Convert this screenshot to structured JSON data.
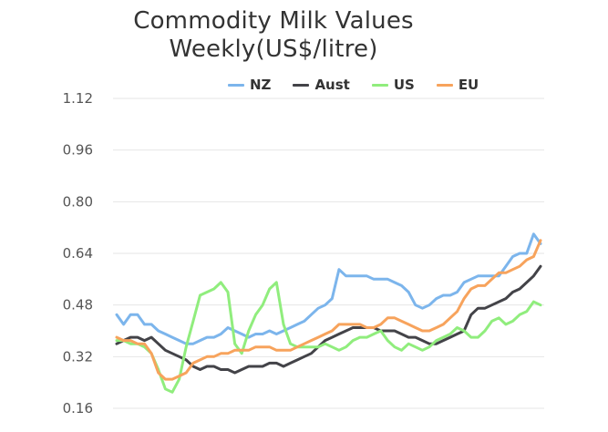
{
  "chart_data": {
    "type": "line",
    "title_line1": "Commodity Milk Values",
    "title_line2": "Weekly(US$/litre)",
    "ylim": [
      0.16,
      1.12
    ],
    "yticks": [
      "1.12",
      "0.96",
      "0.80",
      "0.64",
      "0.48",
      "0.32",
      "0.16"
    ],
    "ytick_values": [
      1.12,
      0.96,
      0.8,
      0.64,
      0.48,
      0.32,
      0.16
    ],
    "grid": true,
    "legend_position": "top-right",
    "series": [
      {
        "name": "NZ",
        "color": "#7cb5ec",
        "values": [
          0.45,
          0.42,
          0.45,
          0.45,
          0.42,
          0.42,
          0.4,
          0.39,
          0.38,
          0.37,
          0.36,
          0.36,
          0.37,
          0.38,
          0.38,
          0.39,
          0.41,
          0.4,
          0.39,
          0.38,
          0.39,
          0.39,
          0.4,
          0.39,
          0.4,
          0.41,
          0.42,
          0.43,
          0.45,
          0.47,
          0.48,
          0.5,
          0.59,
          0.57,
          0.57,
          0.57,
          0.57,
          0.56,
          0.56,
          0.56,
          0.55,
          0.54,
          0.52,
          0.48,
          0.47,
          0.48,
          0.5,
          0.51,
          0.51,
          0.52,
          0.55,
          0.56,
          0.57,
          0.57,
          0.57,
          0.57,
          0.6,
          0.63,
          0.64,
          0.64,
          0.7,
          0.67
        ]
      },
      {
        "name": "Aust",
        "color": "#434348",
        "values": [
          0.36,
          0.37,
          0.38,
          0.38,
          0.37,
          0.38,
          0.36,
          0.34,
          0.33,
          0.32,
          0.31,
          0.29,
          0.28,
          0.29,
          0.29,
          0.28,
          0.28,
          0.27,
          0.28,
          0.29,
          0.29,
          0.29,
          0.3,
          0.3,
          0.29,
          0.3,
          0.31,
          0.32,
          0.33,
          0.35,
          0.37,
          0.38,
          0.39,
          0.4,
          0.41,
          0.41,
          0.41,
          0.41,
          0.4,
          0.4,
          0.4,
          0.39,
          0.38,
          0.38,
          0.37,
          0.36,
          0.36,
          0.37,
          0.38,
          0.39,
          0.4,
          0.45,
          0.47,
          0.47,
          0.48,
          0.49,
          0.5,
          0.52,
          0.53,
          0.55,
          0.57,
          0.6
        ]
      },
      {
        "name": "US",
        "color": "#90ed7d",
        "values": [
          0.37,
          0.37,
          0.36,
          0.36,
          0.35,
          0.33,
          0.28,
          0.22,
          0.21,
          0.25,
          0.35,
          0.43,
          0.51,
          0.52,
          0.53,
          0.55,
          0.52,
          0.36,
          0.33,
          0.4,
          0.45,
          0.48,
          0.53,
          0.55,
          0.42,
          0.36,
          0.35,
          0.35,
          0.35,
          0.35,
          0.36,
          0.35,
          0.34,
          0.35,
          0.37,
          0.38,
          0.38,
          0.39,
          0.4,
          0.37,
          0.35,
          0.34,
          0.36,
          0.35,
          0.34,
          0.35,
          0.37,
          0.38,
          0.39,
          0.41,
          0.4,
          0.38,
          0.38,
          0.4,
          0.43,
          0.44,
          0.42,
          0.43,
          0.45,
          0.46,
          0.49,
          0.48
        ]
      },
      {
        "name": "EU",
        "color": "#f7a35c",
        "values": [
          0.38,
          0.37,
          0.37,
          0.36,
          0.36,
          0.33,
          0.27,
          0.25,
          0.25,
          0.26,
          0.27,
          0.3,
          0.31,
          0.32,
          0.32,
          0.33,
          0.33,
          0.34,
          0.34,
          0.34,
          0.35,
          0.35,
          0.35,
          0.34,
          0.34,
          0.34,
          0.35,
          0.36,
          0.37,
          0.38,
          0.39,
          0.4,
          0.42,
          0.42,
          0.42,
          0.42,
          0.41,
          0.41,
          0.42,
          0.44,
          0.44,
          0.43,
          0.42,
          0.41,
          0.4,
          0.4,
          0.41,
          0.42,
          0.44,
          0.46,
          0.5,
          0.53,
          0.54,
          0.54,
          0.56,
          0.58,
          0.58,
          0.59,
          0.6,
          0.62,
          0.63,
          0.68
        ]
      }
    ]
  }
}
